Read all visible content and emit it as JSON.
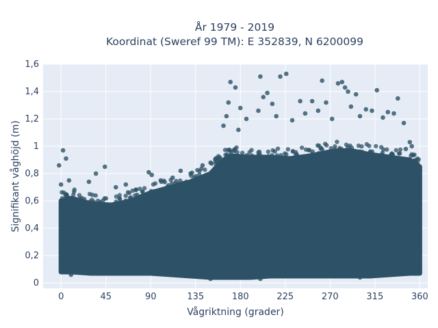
{
  "chart_data": {
    "type": "scatter",
    "title_lines": [
      "År 1979 - 2019",
      "Koordinat (Sweref 99 TM): E 352839, N 6200099"
    ],
    "xlabel": "Vågriktning (grader)",
    "ylabel": "Signifikant våghöjd (m)",
    "xlim": [
      -18,
      368
    ],
    "ylim": [
      -0.04,
      1.6
    ],
    "x_ticks": [
      0,
      45,
      90,
      135,
      180,
      225,
      270,
      315,
      360
    ],
    "x_tick_labels": [
      "0",
      "45",
      "90",
      "135",
      "180",
      "225",
      "270",
      "315",
      "360"
    ],
    "y_ticks": [
      0,
      0.2,
      0.4,
      0.6,
      0.8,
      1.0,
      1.2,
      1.4,
      1.6
    ],
    "y_tick_labels": [
      "0",
      "0,2",
      "0,4",
      "0,6",
      "0,8",
      "1",
      "1,2",
      "1,4",
      "1,6"
    ],
    "grid": true,
    "series": [
      {
        "color": "#2d5166",
        "dense_band": [
          {
            "x": 0,
            "y_low": 0.08,
            "y_high": 0.6
          },
          {
            "x": 10,
            "y_low": 0.08,
            "y_high": 0.62
          },
          {
            "x": 30,
            "y_low": 0.07,
            "y_high": 0.58
          },
          {
            "x": 50,
            "y_low": 0.07,
            "y_high": 0.57
          },
          {
            "x": 70,
            "y_low": 0.07,
            "y_high": 0.6
          },
          {
            "x": 90,
            "y_low": 0.07,
            "y_high": 0.66
          },
          {
            "x": 110,
            "y_low": 0.06,
            "y_high": 0.7
          },
          {
            "x": 130,
            "y_low": 0.05,
            "y_high": 0.74
          },
          {
            "x": 150,
            "y_low": 0.04,
            "y_high": 0.8
          },
          {
            "x": 160,
            "y_low": 0.04,
            "y_high": 0.88
          },
          {
            "x": 170,
            "y_low": 0.04,
            "y_high": 0.93
          },
          {
            "x": 190,
            "y_low": 0.04,
            "y_high": 0.92
          },
          {
            "x": 210,
            "y_low": 0.05,
            "y_high": 0.92
          },
          {
            "x": 230,
            "y_low": 0.05,
            "y_high": 0.91
          },
          {
            "x": 250,
            "y_low": 0.05,
            "y_high": 0.93
          },
          {
            "x": 270,
            "y_low": 0.05,
            "y_high": 0.96
          },
          {
            "x": 290,
            "y_low": 0.05,
            "y_high": 0.97
          },
          {
            "x": 310,
            "y_low": 0.05,
            "y_high": 0.94
          },
          {
            "x": 330,
            "y_low": 0.06,
            "y_high": 0.92
          },
          {
            "x": 350,
            "y_low": 0.07,
            "y_high": 0.9
          },
          {
            "x": 360,
            "y_low": 0.07,
            "y_high": 0.85
          }
        ],
        "points": [
          {
            "x": 2,
            "y": 0.97
          },
          {
            "x": -2,
            "y": 0.86
          },
          {
            "x": 5,
            "y": 0.91
          },
          {
            "x": 0,
            "y": 0.72
          },
          {
            "x": 8,
            "y": 0.75
          },
          {
            "x": 44,
            "y": 0.85
          },
          {
            "x": 35,
            "y": 0.8
          },
          {
            "x": 28,
            "y": 0.74
          },
          {
            "x": 55,
            "y": 0.7
          },
          {
            "x": 65,
            "y": 0.72
          },
          {
            "x": 75,
            "y": 0.68
          },
          {
            "x": 88,
            "y": 0.81
          },
          {
            "x": 91,
            "y": 0.79
          },
          {
            "x": 100,
            "y": 0.75
          },
          {
            "x": 112,
            "y": 0.77
          },
          {
            "x": 120,
            "y": 0.82
          },
          {
            "x": 130,
            "y": 0.8
          },
          {
            "x": 142,
            "y": 0.86
          },
          {
            "x": 150,
            "y": 0.88
          },
          {
            "x": 163,
            "y": 1.15
          },
          {
            "x": 170,
            "y": 1.47
          },
          {
            "x": 175,
            "y": 1.43
          },
          {
            "x": 168,
            "y": 1.32
          },
          {
            "x": 166,
            "y": 1.22
          },
          {
            "x": 180,
            "y": 1.28
          },
          {
            "x": 186,
            "y": 1.2
          },
          {
            "x": 178,
            "y": 1.12
          },
          {
            "x": 200,
            "y": 1.51
          },
          {
            "x": 203,
            "y": 1.36
          },
          {
            "x": 207,
            "y": 1.39
          },
          {
            "x": 198,
            "y": 1.26
          },
          {
            "x": 212,
            "y": 1.31
          },
          {
            "x": 220,
            "y": 1.51
          },
          {
            "x": 226,
            "y": 1.53
          },
          {
            "x": 216,
            "y": 1.22
          },
          {
            "x": 232,
            "y": 1.19
          },
          {
            "x": 240,
            "y": 1.33
          },
          {
            "x": 245,
            "y": 1.24
          },
          {
            "x": 252,
            "y": 1.33
          },
          {
            "x": 258,
            "y": 1.26
          },
          {
            "x": 262,
            "y": 1.48
          },
          {
            "x": 266,
            "y": 1.32
          },
          {
            "x": 272,
            "y": 1.2
          },
          {
            "x": 278,
            "y": 1.46
          },
          {
            "x": 282,
            "y": 1.47
          },
          {
            "x": 285,
            "y": 1.43
          },
          {
            "x": 288,
            "y": 1.4
          },
          {
            "x": 291,
            "y": 1.29
          },
          {
            "x": 296,
            "y": 1.38
          },
          {
            "x": 300,
            "y": 1.22
          },
          {
            "x": 306,
            "y": 1.27
          },
          {
            "x": 312,
            "y": 1.26
          },
          {
            "x": 317,
            "y": 1.41
          },
          {
            "x": 323,
            "y": 1.21
          },
          {
            "x": 328,
            "y": 1.25
          },
          {
            "x": 334,
            "y": 1.24
          },
          {
            "x": 338,
            "y": 1.35
          },
          {
            "x": 344,
            "y": 1.17
          },
          {
            "x": 350,
            "y": 1.03
          },
          {
            "x": 352,
            "y": 1.0
          },
          {
            "x": 356,
            "y": 0.88
          },
          {
            "x": 346,
            "y": 0.98
          },
          {
            "x": 10,
            "y": 0.06
          },
          {
            "x": 150,
            "y": 0.03
          },
          {
            "x": 200,
            "y": 0.03
          },
          {
            "x": 300,
            "y": 0.04
          }
        ]
      }
    ]
  }
}
